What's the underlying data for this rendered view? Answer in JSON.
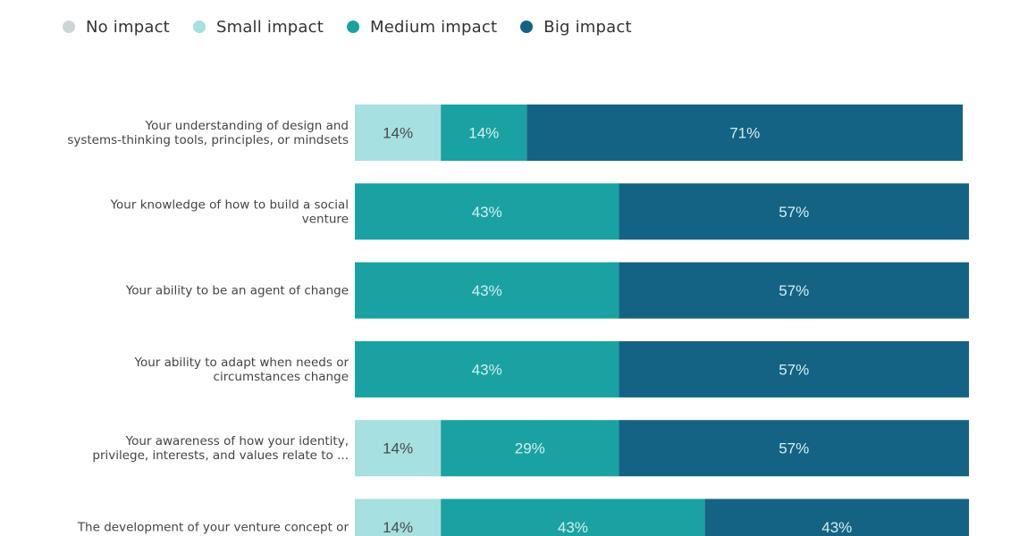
{
  "chart_data": {
    "type": "bar",
    "orientation": "horizontal",
    "stacked": true,
    "normalized_percent": true,
    "title": "",
    "xlabel": "",
    "ylabel": "",
    "xlim": [
      0,
      100
    ],
    "legend_position": "top-left",
    "grid": false,
    "categories": [
      [
        "Your understanding of design and",
        "systems-thinking tools, principles, or mindsets"
      ],
      [
        "Your knowledge of how to build a social",
        "venture"
      ],
      [
        "Your ability to be an agent of change"
      ],
      [
        "Your ability to adapt when needs or",
        "circumstances change"
      ],
      [
        "Your awareness of how your identity,",
        "privilege, interests, and values relate to ..."
      ],
      [
        "The development of your venture concept or"
      ]
    ],
    "series": [
      {
        "name": "No impact",
        "color": "#ccd6d6",
        "values": [
          0,
          0,
          0,
          0,
          0,
          0
        ],
        "labels": [
          "",
          "",
          "",
          "",
          "",
          ""
        ]
      },
      {
        "name": "Small impact",
        "color": "#a6e0e1",
        "values": [
          14,
          0,
          0,
          0,
          14,
          14
        ],
        "labels": [
          "14%",
          "",
          "",
          "",
          "14%",
          "14%"
        ]
      },
      {
        "name": "Medium impact",
        "color": "#1aa2a2",
        "values": [
          14,
          43,
          43,
          43,
          29,
          43
        ],
        "labels": [
          "14%",
          "43%",
          "43%",
          "43%",
          "29%",
          "43%"
        ]
      },
      {
        "name": "Big impact",
        "color": "#146384",
        "values": [
          71,
          57,
          57,
          57,
          57,
          43
        ],
        "labels": [
          "71%",
          "57%",
          "57%",
          "57%",
          "57%",
          "43%"
        ]
      }
    ]
  }
}
